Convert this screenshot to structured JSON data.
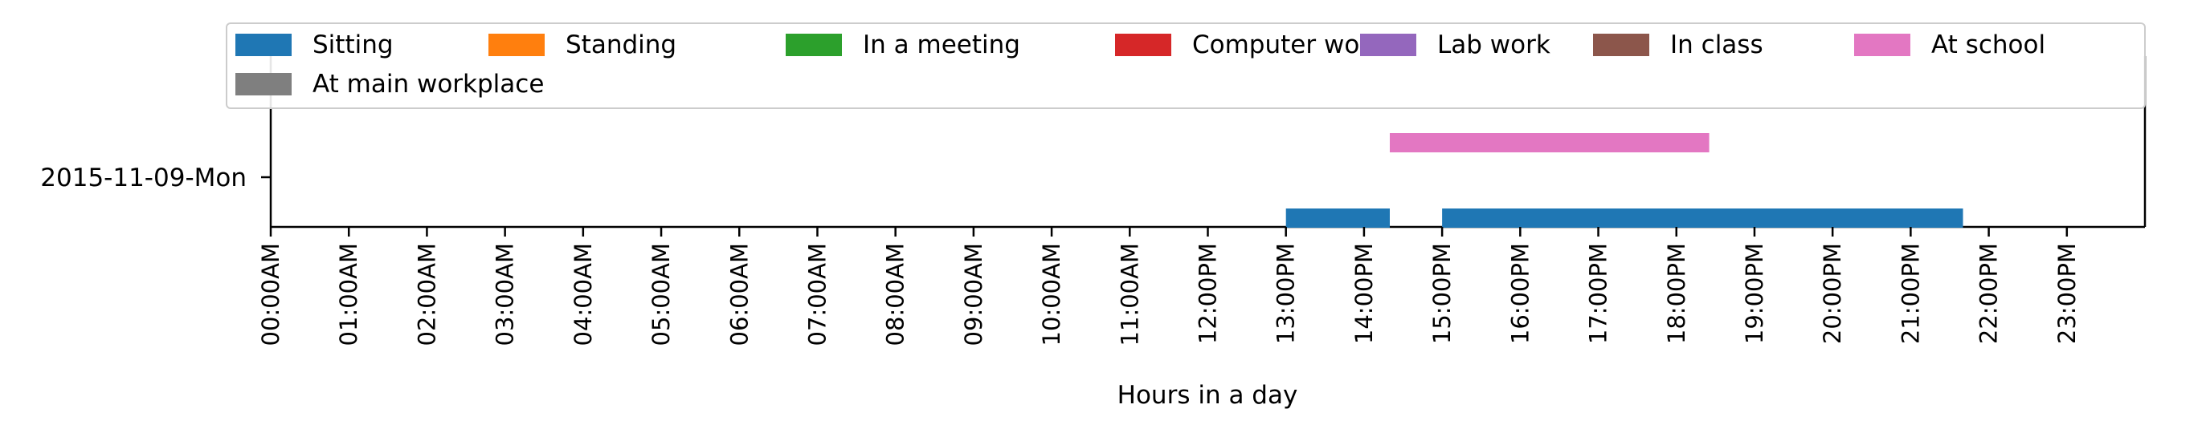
{
  "chart_data": {
    "type": "timeline",
    "xlabel": "Hours in a day",
    "xlim": [
      0,
      24
    ],
    "x_ticks": [
      "00:00AM",
      "01:00AM",
      "02:00AM",
      "03:00AM",
      "04:00AM",
      "05:00AM",
      "06:00AM",
      "07:00AM",
      "08:00AM",
      "09:00AM",
      "10:00AM",
      "11:00AM",
      "12:00PM",
      "13:00PM",
      "14:00PM",
      "15:00PM",
      "16:00PM",
      "17:00PM",
      "18:00PM",
      "19:00PM",
      "20:00PM",
      "21:00PM",
      "22:00PM",
      "23:00PM"
    ],
    "categories": [
      "2015-11-09-Mon"
    ],
    "legend_position": "top",
    "series": [
      {
        "name": "Sitting",
        "color": "#1f77b4",
        "level": 0,
        "intervals": [
          [
            13.0,
            14.33
          ],
          [
            15.0,
            21.67
          ]
        ]
      },
      {
        "name": "Standing",
        "color": "#ff7f0e",
        "level": 1,
        "intervals": []
      },
      {
        "name": "In a meeting",
        "color": "#2ca02c",
        "level": 2,
        "intervals": []
      },
      {
        "name": "Computer work",
        "color": "#d62728",
        "level": 3,
        "intervals": []
      },
      {
        "name": "Lab work",
        "color": "#9467bd",
        "level": 4,
        "intervals": []
      },
      {
        "name": "In class",
        "color": "#8c564b",
        "level": 5,
        "intervals": []
      },
      {
        "name": "At school",
        "color": "#e377c2",
        "level": 6,
        "intervals": [
          [
            14.33,
            18.42
          ]
        ]
      },
      {
        "name": "At main workplace",
        "color": "#7f7f7f",
        "level": 7,
        "intervals": []
      }
    ]
  }
}
